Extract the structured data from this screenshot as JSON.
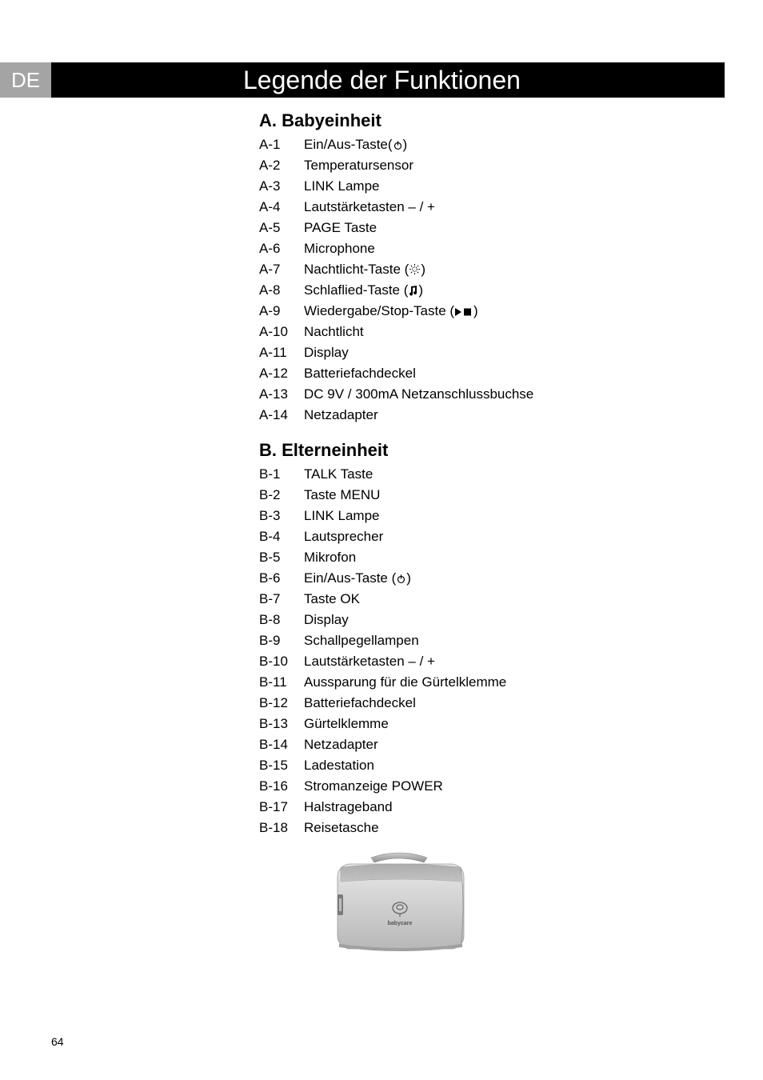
{
  "page": {
    "lang": "DE",
    "title": "Legende der Funktionen",
    "pageNumber": "64"
  },
  "sections": [
    {
      "heading": "A. Babyeinheit",
      "items": [
        {
          "key": "A-1",
          "label": "Ein/Aus-Taste(",
          "icon": "power",
          "after": ")"
        },
        {
          "key": "A-2",
          "label": "Temperatursensor"
        },
        {
          "key": "A-3",
          "label": "LINK Lampe"
        },
        {
          "key": "A-4",
          "label": "Lautstärketasten – / +"
        },
        {
          "key": "A-5",
          "label": "PAGE Taste"
        },
        {
          "key": "A-6",
          "label": "Microphone"
        },
        {
          "key": "A-7",
          "label": "Nachtlicht-Taste (",
          "icon": "sun",
          "after": ")"
        },
        {
          "key": "A-8",
          "label": "Schlaflied-Taste (",
          "icon": "music",
          "after": ")"
        },
        {
          "key": "A-9",
          "label": "Wiedergabe/Stop-Taste (",
          "icon": "playstop",
          "after": ")"
        },
        {
          "key": "A-10",
          "label": "Nachtlicht"
        },
        {
          "key": "A-11",
          "label": "Display"
        },
        {
          "key": "A-12",
          "label": "Batteriefachdeckel"
        },
        {
          "key": "A-13",
          "label": "DC 9V / 300mA Netzanschlussbuchse"
        },
        {
          "key": "A-14",
          "label": "Netzadapter"
        }
      ]
    },
    {
      "heading": "B. Elterneinheit",
      "items": [
        {
          "key": "B-1",
          "label": "TALK Taste"
        },
        {
          "key": "B-2",
          "label": "Taste MENU"
        },
        {
          "key": "B-3",
          "label": "LINK Lampe"
        },
        {
          "key": "B-4",
          "label": "Lautsprecher"
        },
        {
          "key": "B-5",
          "label": "Mikrofon"
        },
        {
          "key": "B-6",
          "label": "Ein/Aus-Taste (",
          "icon": "power",
          "after": ")"
        },
        {
          "key": "B-7",
          "label": "Taste OK"
        },
        {
          "key": "B-8",
          "label": "Display"
        },
        {
          "key": "B-9",
          "label": "Schallpegellampen"
        },
        {
          "key": "B-10",
          "label": "Lautstärketasten – / +"
        },
        {
          "key": "B-11",
          "label": "Aussparung für die Gürtelklemme"
        },
        {
          "key": "B-12",
          "label": "Batteriefachdeckel"
        },
        {
          "key": "B-13",
          "label": "Gürtelklemme"
        },
        {
          "key": "B-14",
          "label": "Netzadapter"
        },
        {
          "key": "B-15",
          "label": "Ladestation"
        },
        {
          "key": "B-16",
          "label": "Stromanzeige POWER"
        },
        {
          "key": "B-17",
          "label": "Halstrageband"
        },
        {
          "key": "B-18",
          "label": "Reisetasche"
        }
      ]
    }
  ],
  "styling": {
    "langTabBg": "#a4a4a4",
    "titleBarBg": "#000000",
    "titleColor": "#ffffff",
    "bodyColor": "#000000",
    "headingFontSize": 22,
    "bodyFontSize": 17
  }
}
